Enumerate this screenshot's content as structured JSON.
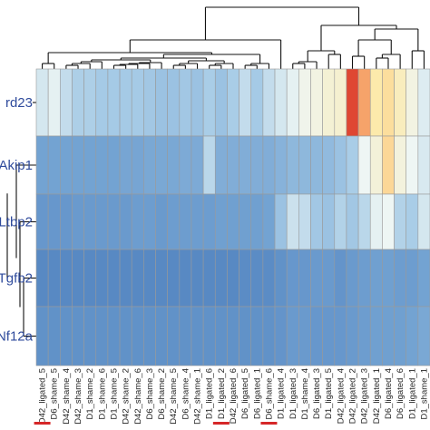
{
  "chart_data": {
    "type": "heatmap",
    "title": "",
    "xlabel": "",
    "ylabel": "",
    "rows": [
      "rd23",
      "Akip1",
      "Ltbp2",
      "Tgfb2",
      "Nf12a"
    ],
    "columns": [
      "D42_ligated_5",
      "D6_shame_5",
      "D42_shame_4",
      "D42_shame_3",
      "D1_shame_2",
      "D1_shame_6",
      "D1_shame_5",
      "D42_shame_2",
      "D42_shame_6",
      "D6_shame_3",
      "D6_shame_2",
      "D42_shame_5",
      "D6_shame_4",
      "D42_shame_1",
      "D1_ligated_6",
      "D1_ligated_2",
      "D42_ligated_6",
      "D6_ligated_5",
      "D6_ligated_1",
      "D6_shame_6",
      "D1_ligated_4",
      "D1_ligated_3",
      "D1_shame_4",
      "D6_ligated_3",
      "D1_ligated_5",
      "D42_ligated_4",
      "D42_ligated_2",
      "D42_ligated_3",
      "D42_ligated_1",
      "D6_ligated_4",
      "D6_ligated_6",
      "D1_ligated_1",
      "D1_shame_1"
    ],
    "highlighted_columns": [
      "D42_ligated_5",
      "D1_ligated_2",
      "D6_shame_6"
    ],
    "values": [
      [
        0.44,
        0.48,
        0.4,
        0.35,
        0.35,
        0.33,
        0.33,
        0.33,
        0.33,
        0.32,
        0.3,
        0.3,
        0.32,
        0.3,
        0.34,
        0.3,
        0.34,
        0.4,
        0.33,
        0.4,
        0.44,
        0.48,
        0.52,
        0.54,
        0.57,
        0.58,
        0.96,
        0.85,
        0.66,
        0.7,
        0.62,
        0.54,
        0.46
      ],
      [
        0.18,
        0.18,
        0.18,
        0.18,
        0.18,
        0.18,
        0.18,
        0.19,
        0.19,
        0.2,
        0.2,
        0.2,
        0.21,
        0.21,
        0.38,
        0.22,
        0.22,
        0.22,
        0.22,
        0.22,
        0.24,
        0.26,
        0.26,
        0.26,
        0.27,
        0.3,
        0.34,
        0.5,
        0.56,
        0.72,
        0.55,
        0.5,
        0.45
      ],
      [
        0.14,
        0.14,
        0.14,
        0.15,
        0.15,
        0.15,
        0.15,
        0.15,
        0.16,
        0.16,
        0.15,
        0.16,
        0.16,
        0.16,
        0.16,
        0.17,
        0.17,
        0.17,
        0.17,
        0.18,
        0.3,
        0.42,
        0.4,
        0.32,
        0.3,
        0.36,
        0.32,
        0.38,
        0.48,
        0.5,
        0.36,
        0.34,
        0.44
      ],
      [
        0.09,
        0.09,
        0.09,
        0.09,
        0.09,
        0.09,
        0.09,
        0.09,
        0.09,
        0.09,
        0.09,
        0.09,
        0.09,
        0.09,
        0.09,
        0.09,
        0.09,
        0.1,
        0.1,
        0.1,
        0.12,
        0.14,
        0.14,
        0.15,
        0.15,
        0.13,
        0.15,
        0.16,
        0.17,
        0.17,
        0.16,
        0.16,
        0.18
      ],
      [
        0.12,
        0.12,
        0.12,
        0.12,
        0.12,
        0.12,
        0.12,
        0.12,
        0.12,
        0.12,
        0.12,
        0.12,
        0.12,
        0.12,
        0.12,
        0.12,
        0.12,
        0.12,
        0.12,
        0.12,
        0.13,
        0.15,
        0.15,
        0.14,
        0.14,
        0.14,
        0.15,
        0.16,
        0.17,
        0.17,
        0.17,
        0.18,
        0.2
      ]
    ],
    "color_scale": [
      "#3e6fb4",
      "#6f9fd0",
      "#a6cbe6",
      "#eef6f4",
      "#fde9a8",
      "#f9b172",
      "#d7261e"
    ],
    "highlight_color": "#d62728",
    "grid": true,
    "legend": "none"
  }
}
